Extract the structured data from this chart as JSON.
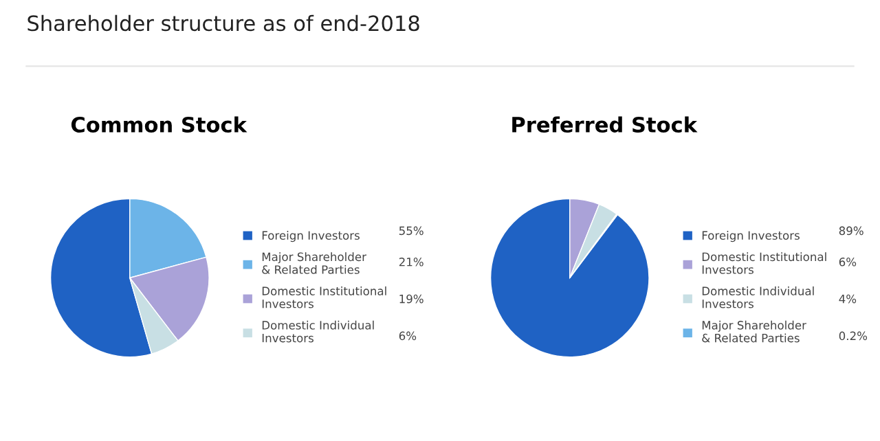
{
  "chart_data": [
    {
      "type": "pie",
      "title": "Common Stock",
      "annotations": [
        "Shareholder structure as of end-2018"
      ],
      "categories": [
        "Foreign Investors",
        "Major Shareholder & Related Parties",
        "Domestic Institutional Investors",
        "Domestic Individual Investors"
      ],
      "values": [
        55,
        21,
        19,
        6
      ],
      "value_labels": [
        "55%",
        "21%",
        "19%",
        "6%"
      ],
      "colors": [
        "#1f62c4",
        "#6cb4e8",
        "#aaa2d8",
        "#c8dfe4"
      ],
      "legend": "right"
    },
    {
      "type": "pie",
      "title": "Preferred Stock",
      "categories": [
        "Foreign Investors",
        "Domestic Institutional Investors",
        "Domestic Individual Investors",
        "Major Shareholder & Related Parties"
      ],
      "values": [
        89,
        6,
        4,
        0.2
      ],
      "value_labels": [
        "89%",
        "6%",
        "4%",
        "0.2%"
      ],
      "colors": [
        "#1f62c4",
        "#aaa2d8",
        "#c8dfe4",
        "#6cb4e8"
      ],
      "legend": "right"
    }
  ]
}
